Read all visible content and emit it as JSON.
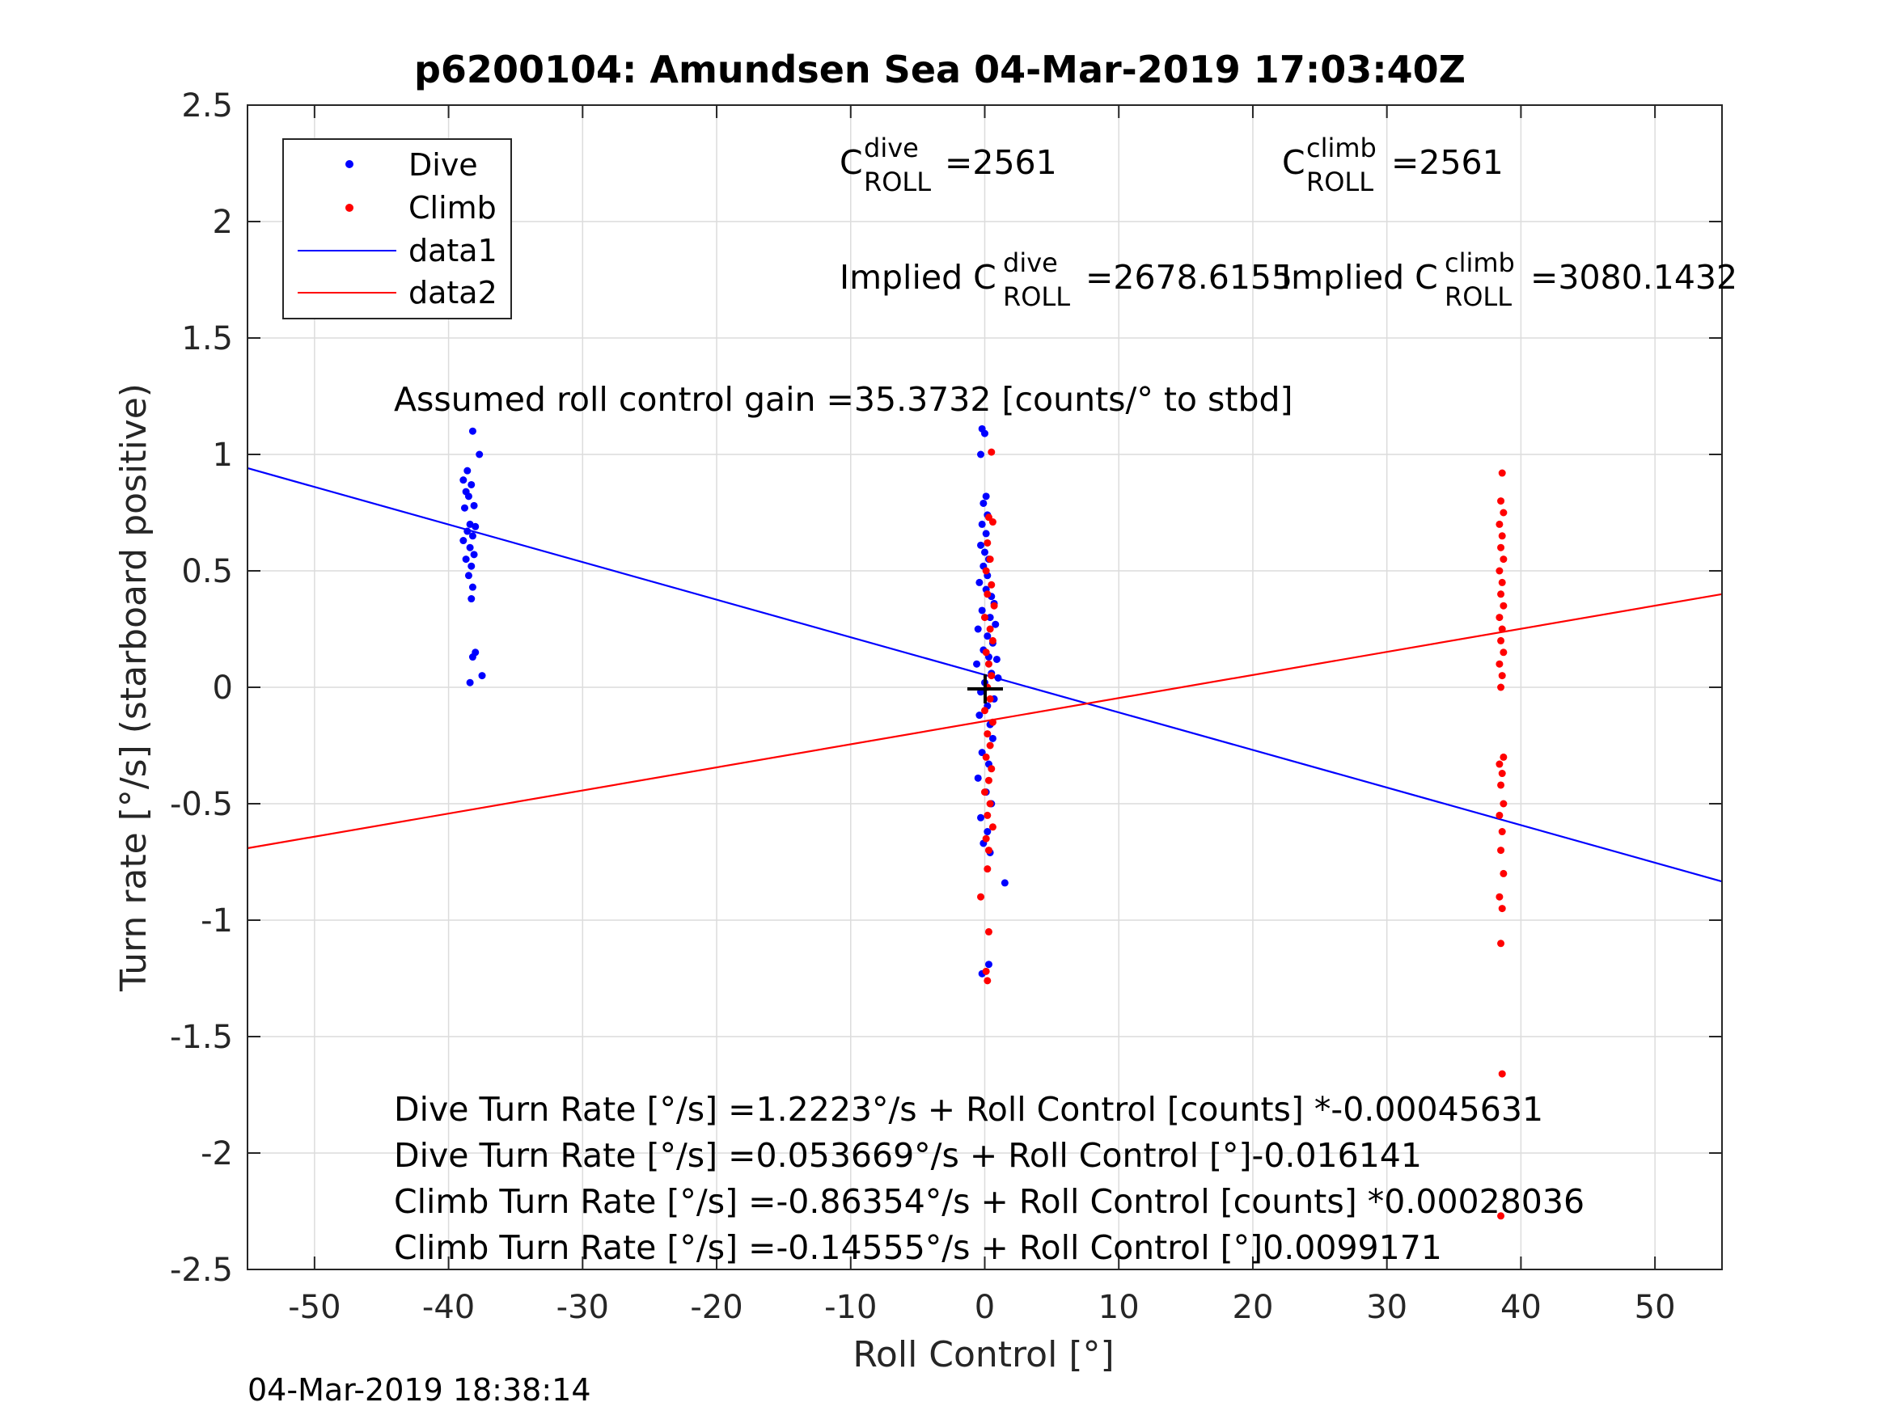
{
  "chart_data": {
    "type": "scatter",
    "title": "p6200104: Amundsen Sea 04-Mar-2019 17:03:40Z",
    "xlabel": "Roll Control [°]",
    "ylabel": "Turn rate [°/s] (starboard positive)",
    "xlim": [
      -55,
      55
    ],
    "ylim": [
      -2.5,
      2.5
    ],
    "x_ticks": [
      -50,
      -40,
      -30,
      -20,
      -10,
      0,
      10,
      20,
      30,
      40,
      50
    ],
    "x_tick_labels": [
      "-50",
      "-40",
      "-30",
      "-20",
      "-10",
      "0",
      "10",
      "20",
      "30",
      "40",
      "50"
    ],
    "y_ticks": [
      2.5,
      2,
      1.5,
      1,
      0.5,
      0,
      -0.5,
      -1,
      -1.5,
      -2,
      -2.5
    ],
    "y_tick_labels": [
      "2.5",
      "2",
      "1.5",
      "1",
      "0.5",
      "0",
      "-0.5",
      "-1",
      "-1.5",
      "-2",
      "-2.5"
    ],
    "grid": true,
    "legend_position": "top-left",
    "legend": [
      {
        "label": "Dive",
        "kind": "marker",
        "color": "#0000ff"
      },
      {
        "label": "Climb",
        "kind": "marker",
        "color": "#ff0000"
      },
      {
        "label": "data1",
        "kind": "line",
        "color": "#0000ff"
      },
      {
        "label": "data2",
        "kind": "line",
        "color": "#ff0000"
      }
    ],
    "series": [
      {
        "name": "Dive",
        "color": "#0000ff",
        "points": [
          [
            -38.2,
            1.1
          ],
          [
            -38.6,
            0.93
          ],
          [
            -38.9,
            0.89
          ],
          [
            -38.3,
            0.87
          ],
          [
            -38.7,
            0.84
          ],
          [
            -38.5,
            0.82
          ],
          [
            -38.1,
            0.78
          ],
          [
            -38.8,
            0.77
          ],
          [
            -38.4,
            0.7
          ],
          [
            -38.0,
            0.69
          ],
          [
            -38.6,
            0.67
          ],
          [
            -38.2,
            0.65
          ],
          [
            -38.9,
            0.63
          ],
          [
            -38.4,
            0.6
          ],
          [
            -38.1,
            0.57
          ],
          [
            -38.7,
            0.55
          ],
          [
            -38.3,
            0.52
          ],
          [
            -38.5,
            0.48
          ],
          [
            -38.2,
            0.43
          ],
          [
            -38.3,
            0.38
          ],
          [
            -38.0,
            0.15
          ],
          [
            -38.2,
            0.13
          ],
          [
            -38.4,
            0.02
          ],
          [
            -37.5,
            0.05
          ],
          [
            -37.7,
            1.0
          ],
          [
            -0.2,
            1.11
          ],
          [
            0.0,
            1.09
          ],
          [
            -0.3,
            1.0
          ],
          [
            0.1,
            0.82
          ],
          [
            -0.1,
            0.79
          ],
          [
            0.2,
            0.74
          ],
          [
            -0.2,
            0.7
          ],
          [
            0.1,
            0.66
          ],
          [
            -0.3,
            0.61
          ],
          [
            0.0,
            0.58
          ],
          [
            0.3,
            0.55
          ],
          [
            -0.1,
            0.52
          ],
          [
            0.2,
            0.48
          ],
          [
            -0.4,
            0.45
          ],
          [
            0.1,
            0.42
          ],
          [
            0.5,
            0.39
          ],
          [
            0.7,
            0.36
          ],
          [
            -0.2,
            0.33
          ],
          [
            0.4,
            0.3
          ],
          [
            0.8,
            0.27
          ],
          [
            -0.5,
            0.25
          ],
          [
            0.2,
            0.22
          ],
          [
            0.6,
            0.19
          ],
          [
            -0.1,
            0.16
          ],
          [
            0.3,
            0.13
          ],
          [
            0.9,
            0.12
          ],
          [
            -0.6,
            0.1
          ],
          [
            0.5,
            0.06
          ],
          [
            1.0,
            0.04
          ],
          [
            0.0,
            0.02
          ],
          [
            -0.3,
            -0.02
          ],
          [
            0.7,
            -0.05
          ],
          [
            0.2,
            -0.08
          ],
          [
            -0.4,
            -0.12
          ],
          [
            0.4,
            -0.16
          ],
          [
            0.6,
            -0.22
          ],
          [
            -0.2,
            -0.28
          ],
          [
            0.3,
            -0.33
          ],
          [
            -0.5,
            -0.39
          ],
          [
            0.1,
            -0.45
          ],
          [
            0.5,
            -0.5
          ],
          [
            -0.3,
            -0.56
          ],
          [
            0.2,
            -0.62
          ],
          [
            -0.1,
            -0.67
          ],
          [
            0.4,
            -0.71
          ],
          [
            1.5,
            -0.84
          ],
          [
            -0.2,
            -1.23
          ],
          [
            0.3,
            -1.19
          ]
        ]
      },
      {
        "name": "Climb",
        "color": "#ff0000",
        "points": [
          [
            0.5,
            1.01
          ],
          [
            0.3,
            0.73
          ],
          [
            0.6,
            0.71
          ],
          [
            0.2,
            0.62
          ],
          [
            0.4,
            0.55
          ],
          [
            0.1,
            0.5
          ],
          [
            0.5,
            0.44
          ],
          [
            0.2,
            0.4
          ],
          [
            0.7,
            0.35
          ],
          [
            0.0,
            0.3
          ],
          [
            0.4,
            0.25
          ],
          [
            0.6,
            0.2
          ],
          [
            0.1,
            0.15
          ],
          [
            0.3,
            0.1
          ],
          [
            0.5,
            0.05
          ],
          [
            0.2,
            0.0
          ],
          [
            0.4,
            -0.05
          ],
          [
            0.0,
            -0.1
          ],
          [
            0.6,
            -0.15
          ],
          [
            0.2,
            -0.2
          ],
          [
            0.4,
            -0.25
          ],
          [
            0.1,
            -0.3
          ],
          [
            0.5,
            -0.35
          ],
          [
            0.3,
            -0.4
          ],
          [
            0.0,
            -0.45
          ],
          [
            0.4,
            -0.5
          ],
          [
            0.2,
            -0.55
          ],
          [
            0.6,
            -0.6
          ],
          [
            0.1,
            -0.65
          ],
          [
            0.3,
            -0.7
          ],
          [
            0.2,
            -0.78
          ],
          [
            -0.3,
            -0.9
          ],
          [
            0.3,
            -1.05
          ],
          [
            0.1,
            -1.22
          ],
          [
            0.2,
            -1.26
          ],
          [
            38.6,
            0.92
          ],
          [
            38.5,
            0.8
          ],
          [
            38.7,
            0.75
          ],
          [
            38.4,
            0.7
          ],
          [
            38.6,
            0.65
          ],
          [
            38.5,
            0.6
          ],
          [
            38.7,
            0.55
          ],
          [
            38.4,
            0.5
          ],
          [
            38.6,
            0.45
          ],
          [
            38.5,
            0.4
          ],
          [
            38.7,
            0.35
          ],
          [
            38.4,
            0.3
          ],
          [
            38.6,
            0.25
          ],
          [
            38.5,
            0.2
          ],
          [
            38.7,
            0.15
          ],
          [
            38.4,
            0.1
          ],
          [
            38.6,
            0.05
          ],
          [
            38.5,
            0.0
          ],
          [
            38.7,
            -0.3
          ],
          [
            38.4,
            -0.33
          ],
          [
            38.6,
            -0.37
          ],
          [
            38.5,
            -0.42
          ],
          [
            38.7,
            -0.5
          ],
          [
            38.4,
            -0.55
          ],
          [
            38.6,
            -0.62
          ],
          [
            38.5,
            -0.7
          ],
          [
            38.7,
            -0.8
          ],
          [
            38.4,
            -0.9
          ],
          [
            38.6,
            -0.95
          ],
          [
            38.5,
            -1.1
          ],
          [
            38.6,
            -1.66
          ],
          [
            38.5,
            -2.27
          ]
        ]
      },
      {
        "name": "data1",
        "color": "#0000ff",
        "type": "line",
        "x": [
          -55,
          55
        ],
        "y": [
          0.941,
          -0.834
        ]
      },
      {
        "name": "data2",
        "color": "#ff0000",
        "type": "line",
        "x": [
          -55,
          55
        ],
        "y": [
          -0.691,
          0.4
        ]
      }
    ],
    "center_marker": {
      "x": 0,
      "y": 0,
      "symbol": "+",
      "color": "#000000"
    },
    "annotations": {
      "c_dive": {
        "main": "C",
        "sup": "dive",
        "sub": "ROLL",
        "value": "=2561"
      },
      "c_climb": {
        "main": "C",
        "sup": "climb",
        "sub": "ROLL",
        "value": "=2561"
      },
      "implied_dive": {
        "main": "Implied C",
        "sup": "dive",
        "sub": "ROLL",
        "value": "=2678.6155"
      },
      "implied_climb": {
        "main": "Implied C",
        "sup": "climb",
        "sub": "ROLL",
        "value": "=3080.1432"
      },
      "gain": "Assumed roll control gain =35.3732 [counts/° to stbd]",
      "eq1": "Dive Turn Rate [°/s] =1.2223°/s + Roll Control [counts] *-0.00045631",
      "eq2": "Dive Turn Rate [°/s] =0.053669°/s + Roll Control [°]-0.016141",
      "eq3": "Climb Turn Rate [°/s] =-0.86354°/s + Roll Control [counts] *0.00028036",
      "eq4": "Climb Turn Rate [°/s] =-0.14555°/s + Roll Control [°]0.0099171"
    }
  },
  "footer": {
    "timestamp": "04-Mar-2019 18:38:14"
  }
}
